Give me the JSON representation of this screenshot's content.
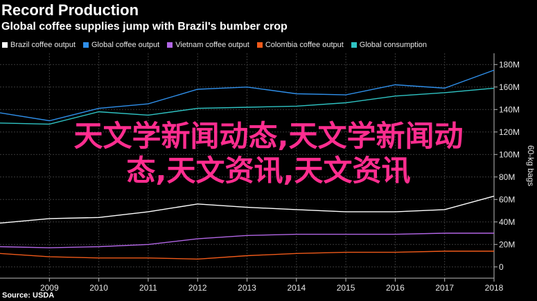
{
  "header": {
    "brand": "Record Production",
    "headline": "Global coffee supplies jump with Brazil's bumber crop"
  },
  "footer": {
    "source": "Source: USDA"
  },
  "overlay": {
    "line1": "天文学新闻动态,天文学新闻动",
    "line2": "态,天文资讯,天文资讯"
  },
  "chart_data": {
    "type": "line",
    "x": [
      2008,
      2009,
      2010,
      2011,
      2012,
      2013,
      2014,
      2015,
      2016,
      2017,
      2018
    ],
    "xtick_labels": [
      "2009",
      "2010",
      "2011",
      "2012",
      "2013",
      "2014",
      "2015",
      "2016",
      "2017",
      "2018"
    ],
    "ylim": [
      -10,
      190
    ],
    "yticks": [
      0,
      20,
      40,
      60,
      80,
      100,
      120,
      140,
      160,
      180
    ],
    "ytick_labels": [
      "0",
      "20M",
      "40M",
      "60M",
      "80M",
      "100M",
      "120M",
      "140M",
      "160M",
      "180M"
    ],
    "ylabel": "60-kg bags",
    "xlabel": "",
    "grid": true,
    "legend": "top-left",
    "series": [
      {
        "name": "Brazil coffee output",
        "color": "#ffffff",
        "values": [
          39,
          43,
          44,
          49,
          56,
          53,
          51,
          49,
          49,
          51,
          63
        ]
      },
      {
        "name": "Global coffee output",
        "color": "#2f8fea",
        "values": [
          137,
          130,
          141,
          145,
          158,
          160,
          154,
          153,
          162,
          159,
          175
        ]
      },
      {
        "name": "Vietnam coffee output",
        "color": "#b266e6",
        "values": [
          18,
          17,
          18,
          20,
          25,
          28,
          29,
          29,
          29,
          30,
          30
        ]
      },
      {
        "name": "Colombia coffee output",
        "color": "#f05a1a",
        "values": [
          12,
          9,
          8,
          8,
          7,
          10,
          12,
          13,
          13,
          14,
          14
        ]
      },
      {
        "name": "Global consumption",
        "color": "#2fc4c4",
        "values": [
          128,
          127,
          138,
          135,
          141,
          142,
          143,
          146,
          152,
          155,
          159
        ]
      }
    ]
  }
}
